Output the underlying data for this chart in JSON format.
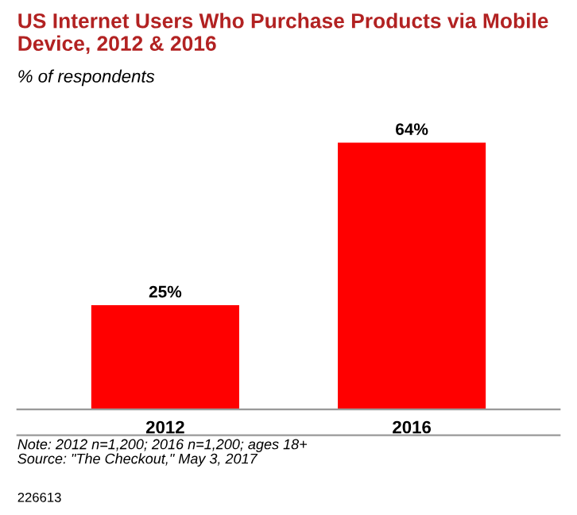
{
  "chart_data": {
    "type": "bar",
    "title": "US Internet Users Who Purchase Products via Mobile Device, 2012 & 2016",
    "subtitle": "% of respondents",
    "categories": [
      "2012",
      "2016"
    ],
    "values": [
      25,
      64
    ],
    "color": "#ff0000",
    "data_labels": true,
    "value_labels": [
      "25%",
      "64%"
    ],
    "annotations": [
      "Note: 2012 n=1,200; 2016 n=1,200; ages 18+\nSource: \"The Checkout,\" May 3, 2017",
      "226613"
    ],
    "grid": false,
    "legend": false
  }
}
